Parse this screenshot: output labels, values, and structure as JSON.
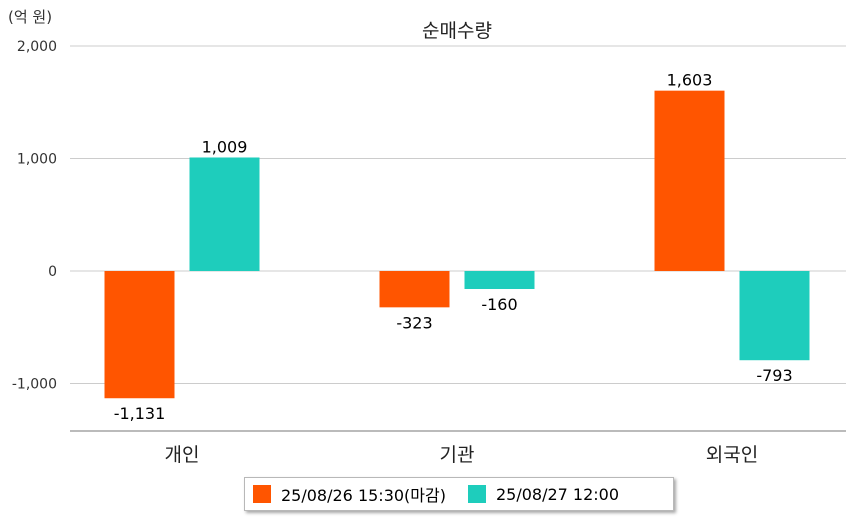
{
  "chart_data": {
    "type": "bar",
    "title": "순매수량",
    "unit_label": "(억 원)",
    "categories": [
      "개인",
      "기관",
      "외국인"
    ],
    "series": [
      {
        "name": "25/08/26 15:30(마감)",
        "color": "#ff5500",
        "values": [
          -1131,
          -323,
          1603
        ]
      },
      {
        "name": "25/08/27 12:00",
        "color": "#1ecdbc",
        "values": [
          1009,
          -160,
          -793
        ]
      }
    ],
    "value_labels": [
      [
        "-1,131",
        "-323",
        "1,603"
      ],
      [
        "1,009",
        "-160",
        "-793"
      ]
    ],
    "y_ticks": [
      2000,
      1000,
      0,
      -1000
    ],
    "y_tick_labels": [
      "2,000",
      "1,000",
      "0",
      "-1,000"
    ],
    "ylim": [
      -1400,
      2000
    ],
    "grid": true,
    "legend_position": "bottom"
  }
}
